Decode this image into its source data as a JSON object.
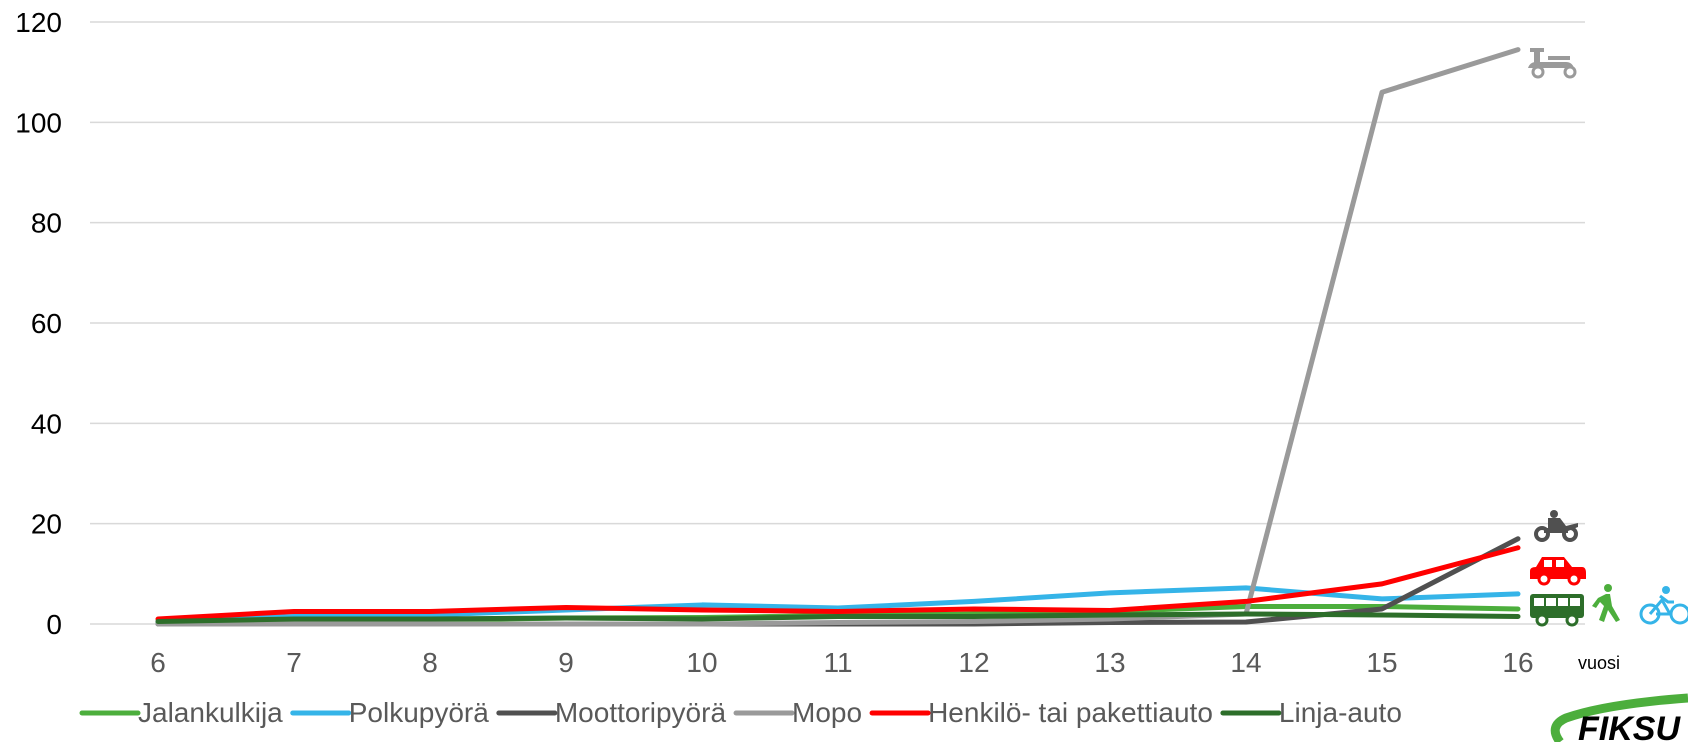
{
  "chart_data": {
    "type": "line",
    "title": "",
    "xlabel": "vuosi",
    "ylabel": "",
    "x": [
      6,
      7,
      8,
      9,
      10,
      11,
      12,
      13,
      14,
      15,
      16
    ],
    "ylim": [
      0,
      120
    ],
    "yticks": [
      0,
      20,
      40,
      60,
      80,
      100,
      120
    ],
    "grid": true,
    "legend_position": "bottom",
    "series": [
      {
        "name": "Jalankulkija",
        "color": "#4cae3c",
        "icon": "pedestrian-icon",
        "values": [
          0.2,
          0.5,
          0.8,
          1.2,
          1.3,
          1.7,
          2.0,
          2.5,
          3.5,
          3.5,
          3.0
        ]
      },
      {
        "name": "Polkupyörä",
        "color": "#35b4e8",
        "icon": "bicycle-icon",
        "values": [
          0.5,
          1.5,
          1.8,
          2.8,
          3.8,
          3.2,
          4.5,
          6.2,
          7.2,
          5.0,
          6.0
        ]
      },
      {
        "name": "Moottoripyörä",
        "color": "#505050",
        "icon": "motorcycle-icon",
        "values": [
          0,
          0,
          0,
          0,
          0,
          0,
          0,
          0.3,
          0.4,
          3.0,
          17.0
        ]
      },
      {
        "name": "Mopo",
        "color": "#9a9a9a",
        "icon": "moped-icon",
        "values": [
          0,
          0,
          0,
          0,
          0,
          0.3,
          0.5,
          1.0,
          2.0,
          106.0,
          114.5
        ]
      },
      {
        "name": "Henkilö- tai pakettiauto",
        "color": "#ff0000",
        "icon": "car-icon",
        "values": [
          1.0,
          2.5,
          2.5,
          3.3,
          2.8,
          2.5,
          3.0,
          2.7,
          4.5,
          8.0,
          15.2
        ]
      },
      {
        "name": "Linja-auto",
        "color": "#2d6e2a",
        "icon": "bus-icon",
        "values": [
          0.5,
          1.0,
          1.0,
          1.2,
          1.0,
          1.5,
          1.5,
          1.8,
          2.0,
          1.8,
          1.5
        ]
      }
    ],
    "logo_text": "FIKSU"
  }
}
